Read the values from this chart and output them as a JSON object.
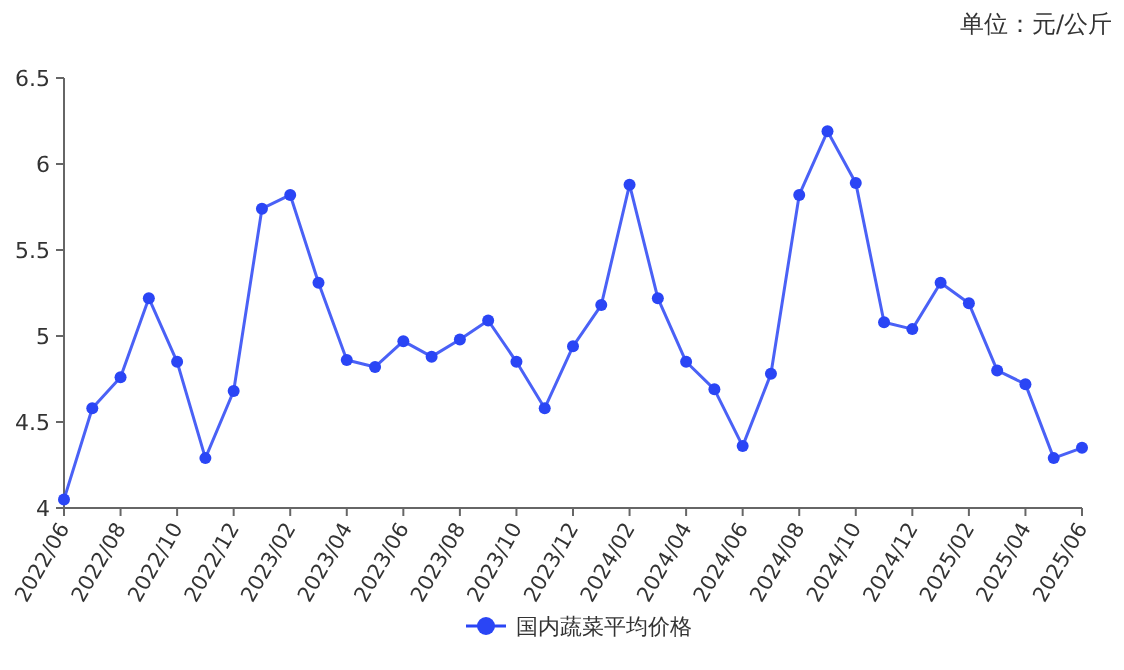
{
  "chart_data": {
    "type": "line",
    "annotations": [
      "单位：元/公斤"
    ],
    "categories": [
      "2022/06",
      null,
      "2022/08",
      null,
      "2022/10",
      null,
      "2022/12",
      null,
      "2023/02",
      null,
      "2023/04",
      null,
      "2023/06",
      null,
      "2023/08",
      null,
      "2023/10",
      null,
      "2023/12",
      null,
      "2024/02",
      null,
      "2024/04",
      null,
      "2024/06",
      null,
      "2024/08",
      null,
      "2024/10",
      null,
      "2024/12",
      null,
      "2025/02",
      null,
      "2025/04",
      null,
      "2025/06"
    ],
    "series": [
      {
        "name": "国内蔬菜平均价格",
        "color": "#2a45f5",
        "values": [
          4.05,
          4.58,
          4.76,
          5.22,
          4.85,
          4.29,
          4.68,
          5.74,
          5.82,
          5.31,
          4.86,
          4.82,
          4.97,
          4.88,
          4.98,
          5.09,
          4.85,
          4.58,
          4.94,
          5.18,
          5.88,
          5.22,
          4.85,
          4.69,
          4.36,
          4.78,
          5.82,
          6.19,
          5.89,
          5.08,
          5.04,
          5.31,
          5.19,
          4.8,
          4.72,
          4.29,
          4.35
        ]
      }
    ],
    "ylim": [
      4,
      6.5
    ],
    "yticks": [
      4,
      4.5,
      5,
      5.5,
      6,
      6.5
    ],
    "marker": "circle",
    "line_style": "solid",
    "legend": "bottom",
    "grid": false
  }
}
